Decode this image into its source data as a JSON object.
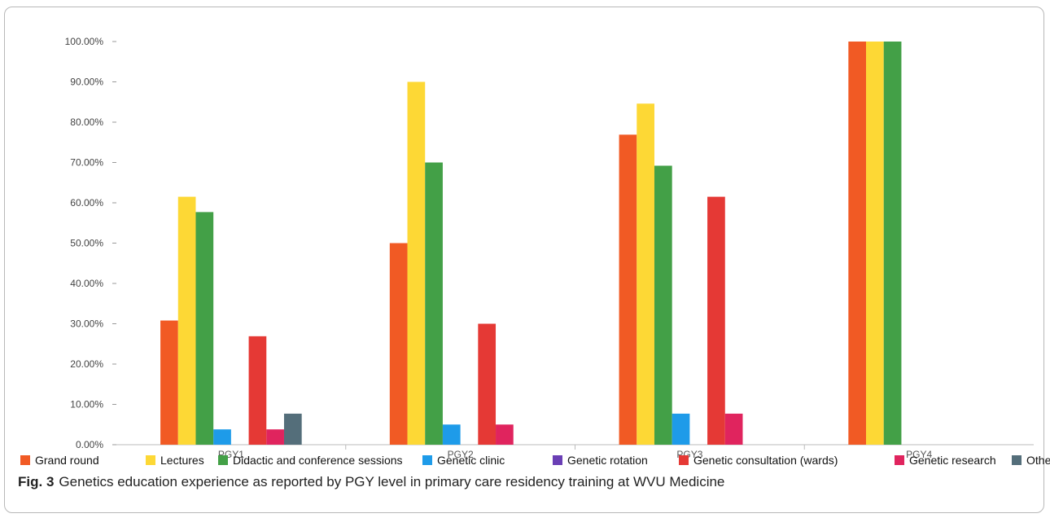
{
  "chart_data": {
    "type": "bar",
    "categories": [
      "PGY1",
      "PGY2",
      "PGY3",
      "PGY4"
    ],
    "ylim": [
      0,
      100
    ],
    "yticks": [
      "0.00%",
      "10.00%",
      "20.00%",
      "30.00%",
      "40.00%",
      "50.00%",
      "60.00%",
      "70.00%",
      "80.00%",
      "90.00%",
      "100.00%"
    ],
    "series": [
      {
        "name": "Grand round",
        "color": "#f15a24",
        "values": [
          30.8,
          50.0,
          76.9,
          100.0
        ]
      },
      {
        "name": "Lectures",
        "color": "#fdd835",
        "values": [
          61.5,
          90.0,
          84.6,
          100.0
        ]
      },
      {
        "name": "Didactic and conference sessions",
        "color": "#43a047",
        "values": [
          57.7,
          70.0,
          69.2,
          100.0
        ]
      },
      {
        "name": "Genetic clinic",
        "color": "#1e9be9",
        "values": [
          3.8,
          5.0,
          7.7,
          0
        ]
      },
      {
        "name": "Genetic rotation",
        "color": "#6a3fb5",
        "values": [
          0,
          0,
          0,
          0
        ]
      },
      {
        "name": "Genetic consultation (wards)",
        "color": "#e53935",
        "values": [
          26.9,
          30.0,
          61.5,
          0
        ]
      },
      {
        "name": "Genetic research",
        "color": "#e0245e",
        "values": [
          3.8,
          5.0,
          7.7,
          0
        ]
      },
      {
        "name": "Other",
        "color": "#546e7a",
        "values": [
          7.7,
          0,
          0,
          0
        ]
      }
    ],
    "legend_position": "bottom",
    "grid": false
  },
  "caption": {
    "label": "Fig. 3",
    "text": "Genetics education experience as reported by PGY level in primary care residency training at WVU Medicine"
  }
}
